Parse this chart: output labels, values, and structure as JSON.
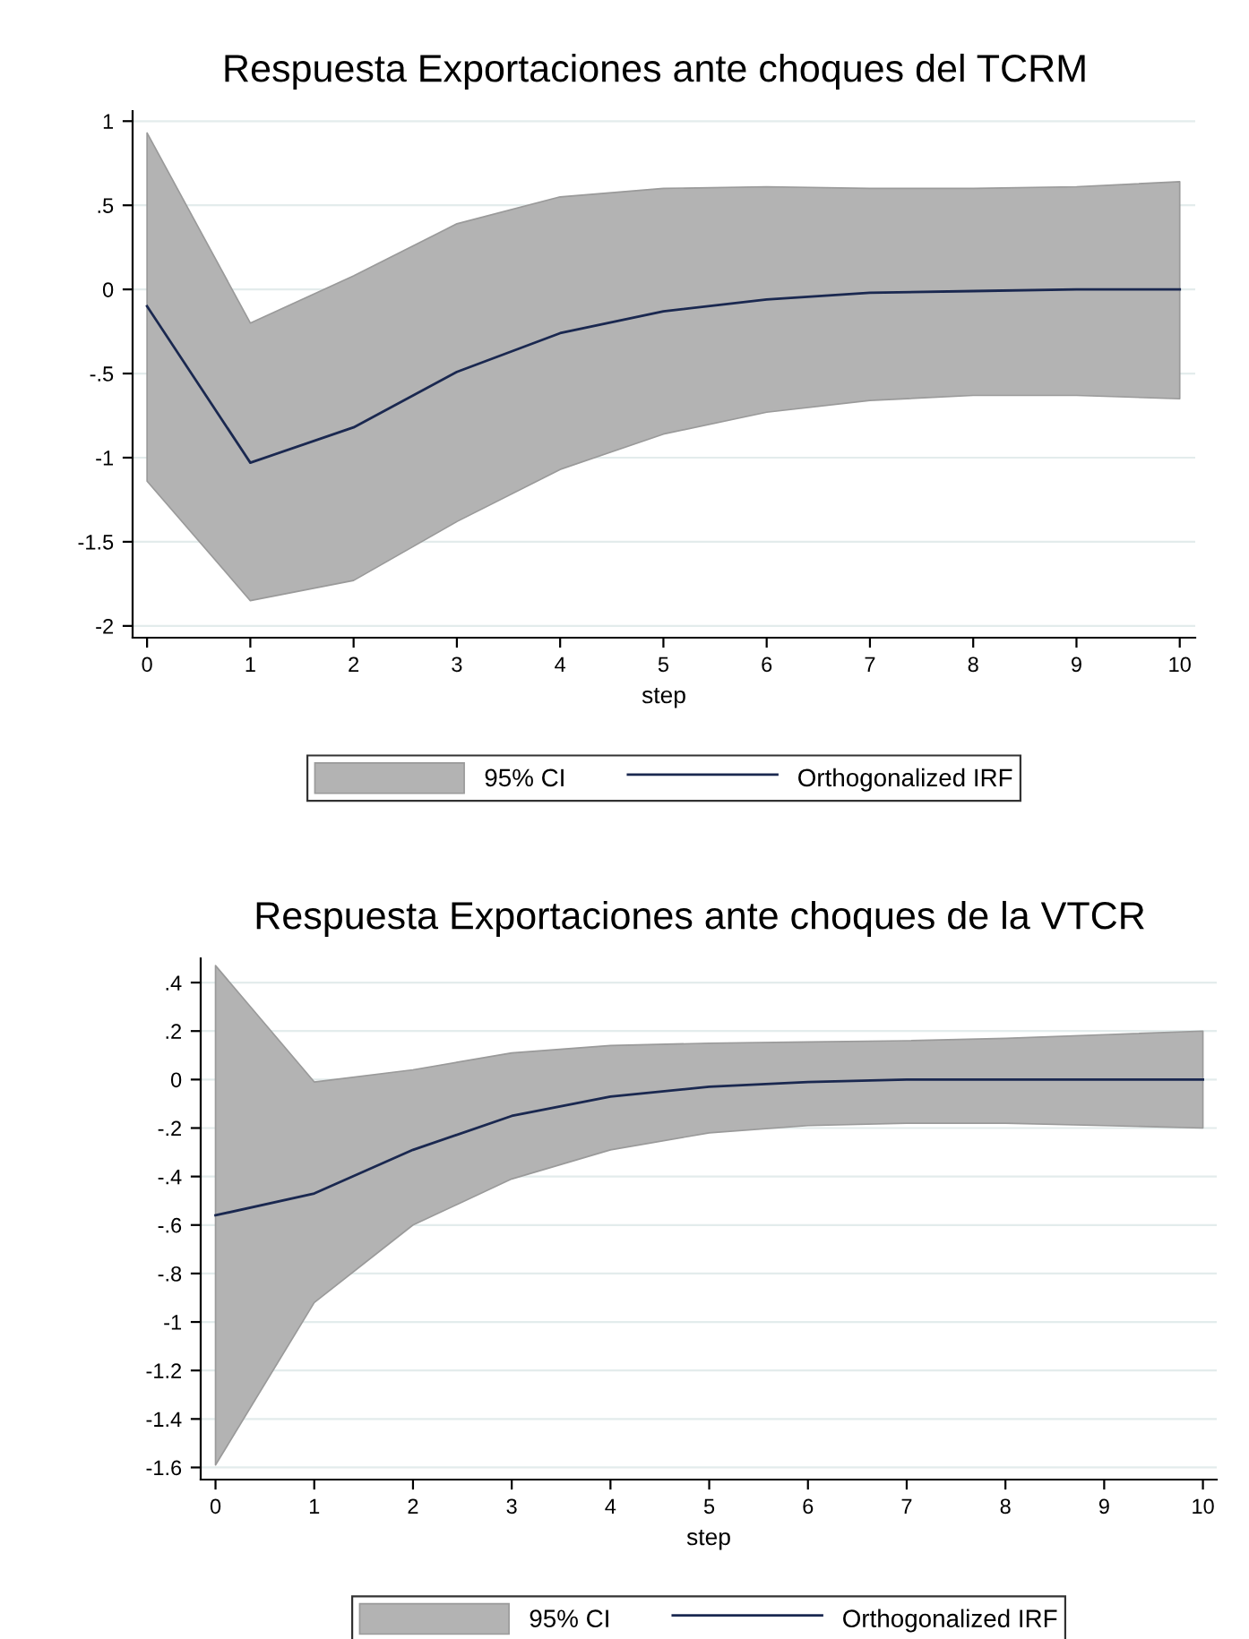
{
  "chart_data": [
    {
      "type": "line",
      "title": "Respuesta Exportaciones ante choques del TCRM",
      "xlabel": "step",
      "annotations": [
        "95% CI"
      ],
      "x": [
        0,
        1,
        2,
        3,
        4,
        5,
        6,
        7,
        8,
        9,
        10
      ],
      "series": [
        {
          "name": "Orthogonalized IRF",
          "color": "#1a2850",
          "values": [
            -0.1,
            -1.03,
            -0.82,
            -0.49,
            -0.26,
            -0.13,
            -0.06,
            -0.02,
            -0.01,
            0,
            0
          ],
          "lower": [
            -1.14,
            -1.85,
            -1.73,
            -1.38,
            -1.07,
            -0.86,
            -0.73,
            -0.66,
            -0.63,
            -0.63,
            -0.65
          ],
          "upper": [
            0.93,
            -0.2,
            0.08,
            0.39,
            0.55,
            0.6,
            0.61,
            0.6,
            0.6,
            0.61,
            0.64
          ]
        }
      ],
      "xlim": [
        -0.14,
        10.15
      ],
      "xticks": [
        0,
        1,
        2,
        3,
        4,
        5,
        6,
        7,
        8,
        9,
        10
      ],
      "ylim": [
        -2.07,
        1.06
      ],
      "yticks": [
        {
          "value": -2,
          "label": "-2"
        },
        {
          "value": -1.5,
          "label": "-1.5"
        },
        {
          "value": -1,
          "label": "-1"
        },
        {
          "value": -0.5,
          "label": "-.5"
        },
        0,
        {
          "value": 0.5,
          "label": ".5"
        },
        1
      ],
      "grid": "y",
      "legend": "bottom"
    },
    {
      "type": "line",
      "title": "Respuesta Exportaciones ante choques de la VTCR",
      "xlabel": "step",
      "annotations": [
        "95% CI"
      ],
      "x": [
        0,
        1,
        2,
        3,
        4,
        5,
        6,
        7,
        8,
        9,
        10
      ],
      "series": [
        {
          "name": "Orthogonalized IRF",
          "color": "#1a2850",
          "values": [
            -0.56,
            -0.47,
            -0.29,
            -0.15,
            -0.07,
            -0.03,
            -0.01,
            0,
            0,
            0,
            0
          ],
          "lower": [
            -1.59,
            -0.92,
            -0.6,
            -0.41,
            -0.29,
            -0.22,
            -0.19,
            -0.18,
            -0.18,
            -0.19,
            -0.2
          ],
          "upper": [
            0.47,
            -0.01,
            0.04,
            0.11,
            0.14,
            0.15,
            0.155,
            0.16,
            0.17,
            0.185,
            0.2
          ]
        }
      ],
      "xlim": [
        -0.15,
        10.14
      ],
      "xticks": [
        0,
        1,
        2,
        3,
        4,
        5,
        6,
        7,
        8,
        9,
        10
      ],
      "ylim": [
        -1.65,
        0.5
      ],
      "yticks": [
        {
          "value": -1.6,
          "label": "-1.6"
        },
        {
          "value": -1.4,
          "label": "-1.4"
        },
        {
          "value": -1.2,
          "label": "-1.2"
        },
        {
          "value": -1,
          "label": "-1"
        },
        {
          "value": -0.8,
          "label": "-.8"
        },
        {
          "value": -0.6,
          "label": "-.6"
        },
        {
          "value": -0.4,
          "label": "-.4"
        },
        {
          "value": -0.2,
          "label": "-.2"
        },
        0,
        {
          "value": 0.2,
          "label": ".2"
        },
        {
          "value": 0.4,
          "label": ".4"
        }
      ],
      "grid": "y",
      "legend": "bottom"
    }
  ]
}
